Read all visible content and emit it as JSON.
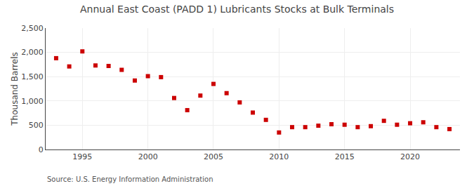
{
  "chart_data": {
    "type": "scatter",
    "title": "Annual East Coast (PADD 1) Lubricants Stocks at Bulk Terminals",
    "ylabel": "Thousand Barrels",
    "annotations": [
      {
        "text": "Source: U.S. Energy Information Administration"
      }
    ],
    "x": [
      1993,
      1994,
      1995,
      1996,
      1997,
      1998,
      1999,
      2000,
      2001,
      2002,
      2003,
      2004,
      2005,
      2006,
      2007,
      2008,
      2009,
      2010,
      2011,
      2012,
      2013,
      2014,
      2015,
      2016,
      2017,
      2018,
      2019,
      2020,
      2021,
      2022,
      2023
    ],
    "values": [
      1880,
      1710,
      2020,
      1730,
      1720,
      1640,
      1420,
      1510,
      1490,
      1060,
      810,
      1110,
      1350,
      1160,
      970,
      760,
      610,
      350,
      460,
      460,
      490,
      520,
      510,
      460,
      480,
      590,
      510,
      540,
      560,
      460,
      420
    ],
    "color": "#cc0000",
    "marker": "square",
    "xlim": [
      1992.2,
      2023.8
    ],
    "xticks": [
      1995,
      2000,
      2005,
      2010,
      2015,
      2020
    ],
    "ylim": [
      0,
      2500
    ],
    "yticks": [
      0,
      500,
      {
        "value": 1000,
        "label": "1,000"
      },
      {
        "value": 1500,
        "label": "1,500"
      },
      {
        "value": 2000,
        "label": "2,000"
      },
      {
        "value": 2500,
        "label": "2,500"
      }
    ],
    "grid": true
  }
}
